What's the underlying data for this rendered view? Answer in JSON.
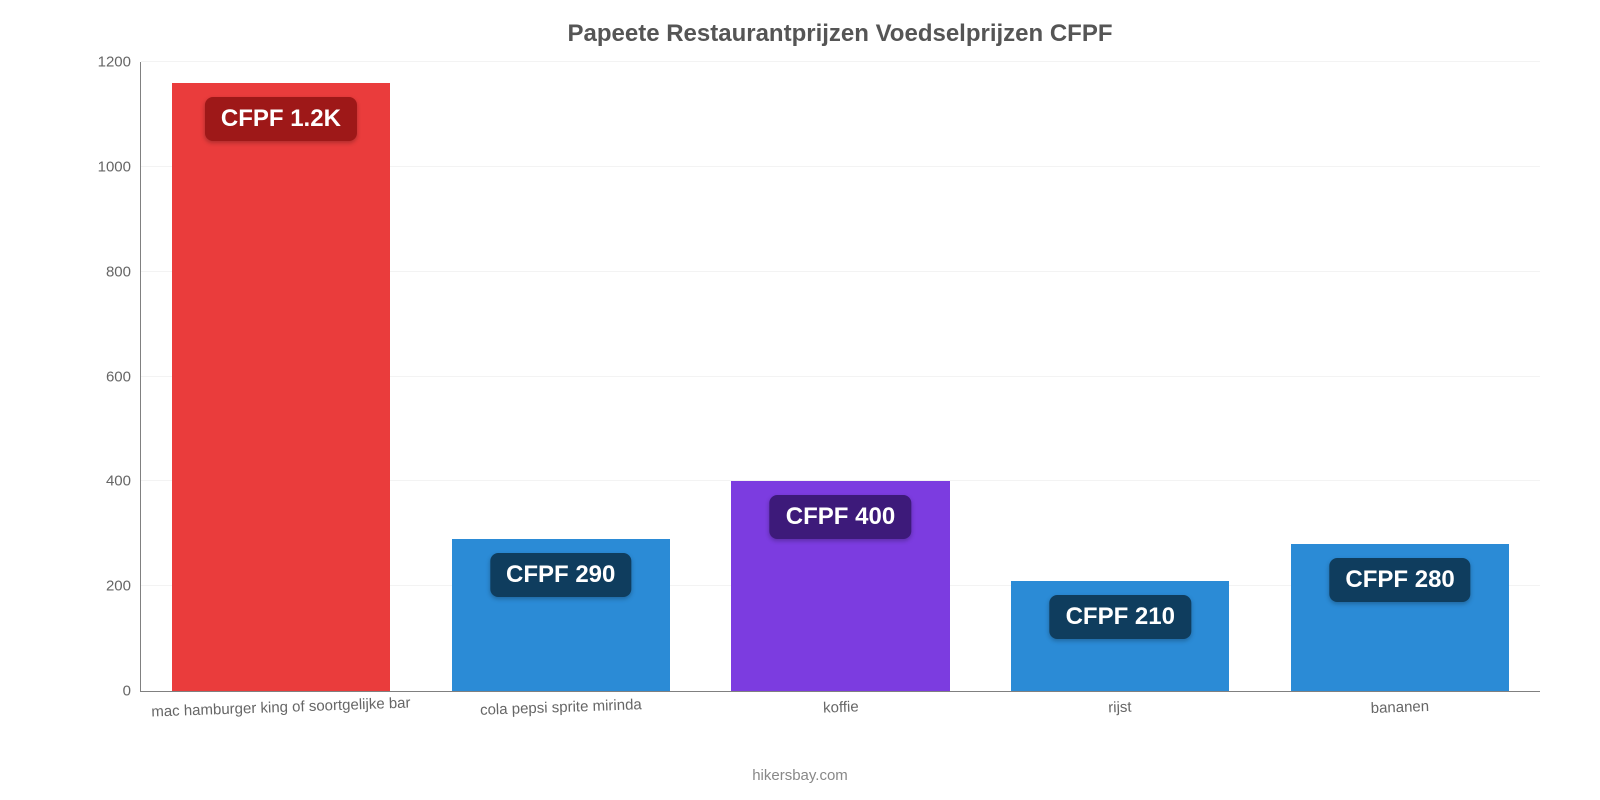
{
  "chart": {
    "type": "bar",
    "title": "Papeete Restaurantprijzen Voedselprijzen CFPF",
    "title_fontsize": 24,
    "title_color": "#555555",
    "background_color": "#ffffff",
    "grid_color": "#f3f3f3",
    "axis_color": "#808080",
    "tick_label_color": "#666666",
    "tick_label_fontsize": 15,
    "ylim": [
      0,
      1200
    ],
    "ytick_step": 200,
    "yticks": [
      0,
      200,
      400,
      600,
      800,
      1000,
      1200
    ],
    "bar_width_pct": 78,
    "badge_fontsize": 24,
    "badge_text_color": "#ffffff",
    "badge_radius": 8,
    "categories": [
      "mac hamburger king of soortgelijke bar",
      "cola pepsi sprite mirinda",
      "koffie",
      "rijst",
      "bananen"
    ],
    "values": [
      1160,
      290,
      400,
      210,
      280
    ],
    "value_labels": [
      "CFPF 1.2K",
      "CFPF 290",
      "CFPF 400",
      "CFPF 210",
      "CFPF 280"
    ],
    "bar_colors": [
      "#ea3c3c",
      "#2b8bd6",
      "#7c3ce0",
      "#2b8bd6",
      "#2b8bd6"
    ],
    "badge_colors": [
      "#9e1818",
      "#0f3d5e",
      "#3d1a7a",
      "#0f3d5e",
      "#0f3d5e"
    ],
    "attribution": "hikersbay.com",
    "attribution_color": "#888888",
    "attribution_fontsize": 15
  }
}
